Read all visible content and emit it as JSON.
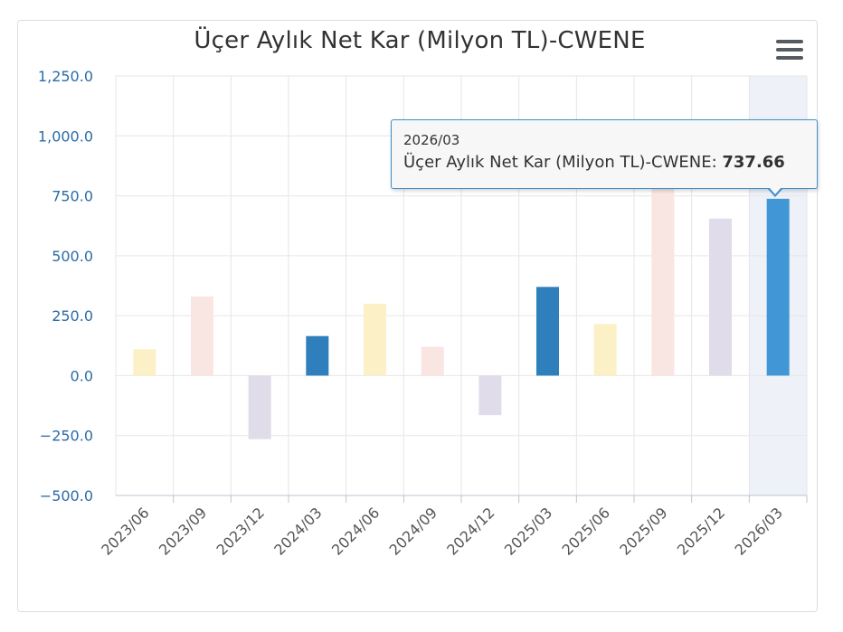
{
  "chart_data": {
    "type": "bar",
    "title": "Üçer Aylık Net Kar (Milyon TL)-CWENE",
    "categories": [
      "2023/06",
      "2023/09",
      "2023/12",
      "2024/03",
      "2024/06",
      "2024/09",
      "2024/12",
      "2025/03",
      "2025/06",
      "2025/09",
      "2025/12",
      "2026/03"
    ],
    "series": [
      {
        "name": "Üçer Aylık Net Kar (Milyon TL)-CWENE",
        "values": [
          110,
          330,
          -265,
          165,
          300,
          120,
          -165,
          370,
          215,
          1000,
          655,
          737.66
        ],
        "colors": [
          "#fbf0c6",
          "#f9e5e2",
          "#e1dcea",
          "#2f7fbc",
          "#fbf0c6",
          "#f9e5e2",
          "#e1dcea",
          "#2f7fbc",
          "#fbf0c6",
          "#f9e5e2",
          "#e1dcea",
          "#4197d5"
        ]
      }
    ],
    "ylim": [
      -500,
      1250
    ],
    "yticks": [
      "1,250.0",
      "1,000.0",
      "750.0",
      "500.0",
      "250.0",
      "0.0",
      "−250.0",
      "−500.0"
    ],
    "ytick_values": [
      1250,
      1000,
      750,
      500,
      250,
      0,
      -250,
      -500
    ],
    "highlighted_category": "2026/03",
    "highlight_band_color": "#eef2f8",
    "grid": true,
    "tooltip": {
      "header": "2026/03",
      "series_label": "Üçer Aylık Net Kar (Milyon TL)-CWENE: ",
      "value": "737.66"
    }
  },
  "menu": {
    "icon": "hamburger-menu-icon"
  }
}
